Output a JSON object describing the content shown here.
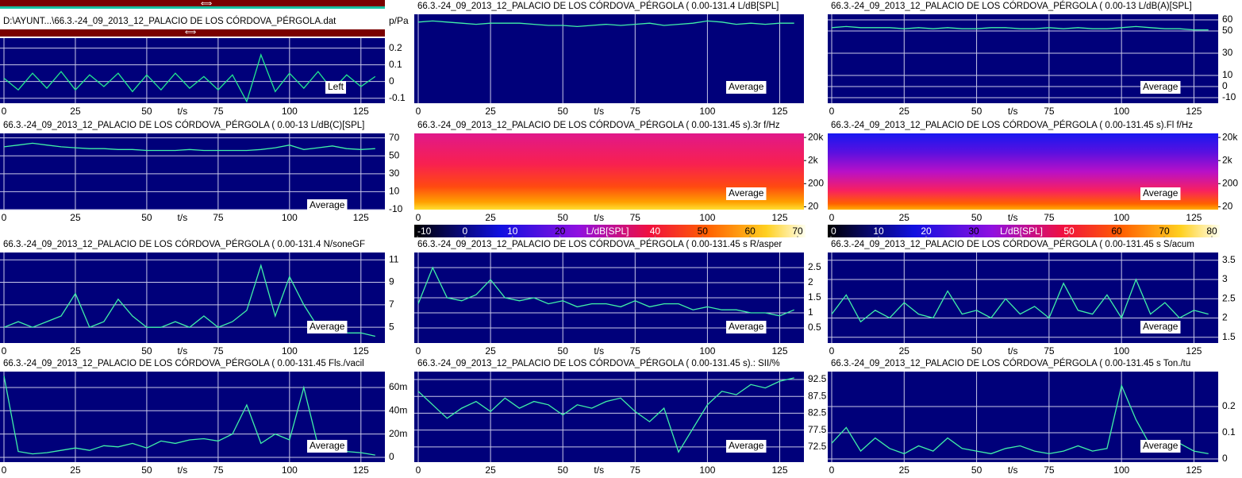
{
  "chart_data": [
    {
      "type": "line",
      "title": "D:\\AYUNT...\\66.3.-24_09_2013_12_PALACIO DE LOS CÓRDOVA_PÉRGOLA.dat",
      "ylabel": "p/Pa",
      "xlabel": "t/s",
      "annotation": "Left",
      "color": "#22e890",
      "x": [
        0,
        5,
        10,
        15,
        20,
        25,
        30,
        35,
        40,
        45,
        50,
        55,
        60,
        65,
        70,
        75,
        80,
        85,
        90,
        95,
        100,
        105,
        110,
        115,
        120,
        125,
        130
      ],
      "values": [
        0.02,
        -0.05,
        0.05,
        -0.04,
        0.06,
        -0.05,
        0.04,
        -0.03,
        0.05,
        -0.06,
        0.04,
        -0.05,
        0.05,
        -0.04,
        0.03,
        -0.05,
        0.04,
        -0.12,
        0.16,
        -0.06,
        0.05,
        -0.04,
        0.06,
        -0.05,
        0.04,
        -0.03,
        0.03
      ],
      "xlim": [
        0,
        131.45
      ],
      "xticks": [
        0,
        25,
        50,
        75,
        100,
        125
      ],
      "ylim": [
        -0.13,
        0.26
      ],
      "yticks": [
        0.2,
        0.1,
        0,
        -0.1
      ],
      "grid": true
    },
    {
      "type": "line",
      "title": "66.3.-24_09_2013_12_PALACIO DE LOS CÓRDOVA_PÉRGOLA ( 0.00-131.4 L/dB[SPL]",
      "xlabel": "t/s",
      "annotation": "Average",
      "color": "#40f0a8",
      "x": [
        0,
        5,
        10,
        15,
        20,
        25,
        30,
        35,
        40,
        45,
        50,
        55,
        60,
        65,
        70,
        75,
        80,
        85,
        90,
        95,
        100,
        105,
        110,
        115,
        120,
        125,
        130
      ],
      "values": [
        58,
        59,
        58,
        57,
        56,
        57,
        57,
        57,
        56,
        55,
        55,
        54,
        55,
        56,
        55,
        56,
        57,
        55,
        56,
        57,
        59,
        58,
        56,
        57,
        56,
        57,
        57
      ],
      "xlim": [
        0,
        131.45
      ],
      "xticks": [
        0,
        25,
        50,
        75,
        100,
        125
      ],
      "ylim": [
        -15,
        65
      ],
      "grid": true
    },
    {
      "type": "line",
      "title": "66.3.-24_09_2013_12_PALACIO DE LOS CÓRDOVA_PÉRGOLA ( 0.00-13 L/dB(A)[SPL]",
      "xlabel": "t/s",
      "annotation": "Average",
      "color": "#40f0a8",
      "x": [
        0,
        5,
        10,
        15,
        20,
        25,
        30,
        35,
        40,
        45,
        50,
        55,
        60,
        65,
        70,
        75,
        80,
        85,
        90,
        95,
        100,
        105,
        110,
        115,
        120,
        125,
        130
      ],
      "values": [
        53,
        54,
        53,
        53,
        53,
        52,
        53,
        52,
        53,
        52,
        52,
        53,
        53,
        52,
        52,
        53,
        52,
        53,
        52,
        52,
        53,
        54,
        53,
        52,
        52,
        51,
        51
      ],
      "xlim": [
        0,
        131.45
      ],
      "xticks": [
        0,
        25,
        50,
        75,
        100,
        125
      ],
      "ylim": [
        -15,
        65
      ],
      "yticks": [
        60,
        50,
        30,
        10,
        0,
        -10
      ],
      "grid": true
    },
    {
      "type": "line",
      "title": "66.3.-24_09_2013_12_PALACIO DE LOS CÓRDOVA_PÉRGOLA ( 0.00-13 L/dB(C)[SPL]",
      "xlabel": "t/s",
      "annotation": "Average",
      "color": "#40f0a8",
      "x": [
        0,
        5,
        10,
        15,
        20,
        25,
        30,
        35,
        40,
        45,
        50,
        55,
        60,
        65,
        70,
        75,
        80,
        85,
        90,
        95,
        100,
        105,
        110,
        115,
        120,
        125,
        130
      ],
      "values": [
        60,
        62,
        64,
        62,
        60,
        59,
        58,
        58,
        57,
        57,
        56,
        56,
        56,
        57,
        56,
        56,
        56,
        56,
        57,
        59,
        62,
        57,
        59,
        61,
        58,
        57,
        58
      ],
      "xlim": [
        0,
        131.45
      ],
      "xticks": [
        0,
        25,
        50,
        75,
        100,
        125
      ],
      "ylim": [
        -10,
        75
      ],
      "yticks": [
        70,
        50,
        30,
        10,
        -10
      ],
      "grid": true
    },
    {
      "type": "spectrogram",
      "title": "66.3.-24_09_2013_12_PALACIO DE LOS CÓRDOVA_PÉRGOLA ( 0.00-131.45 s).3r f/Hz",
      "xlabel": "t/s",
      "annotation": "Average",
      "xlim": [
        0,
        131.45
      ],
      "xticks": [
        0,
        25,
        50,
        75,
        100,
        125
      ],
      "log_y": true,
      "ylim": [
        15,
        30000
      ],
      "yticks": [
        {
          "value": 20000,
          "label": "20k"
        },
        {
          "value": 2000,
          "label": "2k"
        },
        200,
        20
      ],
      "clim": [
        -10,
        70
      ],
      "cticks": [
        -10,
        0,
        10,
        20,
        {
          "value": 30,
          "label": "L/dB[SPL]"
        },
        40,
        50,
        60,
        70
      ]
    },
    {
      "type": "spectrogram",
      "title": "66.3.-24_09_2013_12_PALACIO DE LOS CÓRDOVA_PÉRGOLA ( 0.00-131.45 s).Fl f/Hz",
      "xlabel": "t/s",
      "annotation": "Average",
      "xlim": [
        0,
        131.45
      ],
      "xticks": [
        0,
        25,
        50,
        75,
        100,
        125
      ],
      "log_y": true,
      "ylim": [
        15,
        30000
      ],
      "yticks": [
        {
          "value": 20000,
          "label": "20k"
        },
        {
          "value": 2000,
          "label": "2k"
        },
        200,
        20
      ],
      "clim": [
        0,
        80
      ],
      "cticks": [
        0,
        10,
        20,
        30,
        {
          "value": 40,
          "label": "L/dB[SPL]"
        },
        50,
        60,
        70,
        80
      ]
    },
    {
      "type": "line",
      "title": "66.3.-24_09_2013_12_PALACIO DE LOS CÓRDOVA_PÉRGOLA ( 0.00-131.4 N/soneGF",
      "xlabel": "t/s",
      "annotation": "Average",
      "color": "#40f0a8",
      "x": [
        0,
        5,
        10,
        15,
        20,
        25,
        30,
        35,
        40,
        45,
        50,
        55,
        60,
        65,
        70,
        75,
        80,
        85,
        90,
        95,
        100,
        105,
        110,
        115,
        120,
        125,
        130
      ],
      "values": [
        5,
        5.5,
        5,
        5.5,
        6,
        8,
        5,
        5.5,
        7.5,
        6,
        5,
        5,
        5.5,
        5,
        6,
        5,
        5.5,
        6.5,
        10.5,
        6,
        9.5,
        7,
        5,
        5,
        4.5,
        4.5,
        4.2
      ],
      "xlim": [
        0,
        131.45
      ],
      "xticks": [
        0,
        25,
        50,
        75,
        100,
        125
      ],
      "ylim": [
        3.6,
        11.65
      ],
      "yticks": [
        11,
        9,
        7,
        5
      ],
      "grid": true
    },
    {
      "type": "line",
      "title": "66.3.-24_09_2013_12_PALACIO DE LOS CÓRDOVA_PÉRGOLA ( 0.00-131.45 s R/asper",
      "xlabel": "t/s",
      "annotation": "Average",
      "color": "#40f0a8",
      "x": [
        0,
        5,
        10,
        15,
        20,
        25,
        30,
        35,
        40,
        45,
        50,
        55,
        60,
        65,
        70,
        75,
        80,
        85,
        90,
        95,
        100,
        105,
        110,
        115,
        120,
        125,
        130
      ],
      "values": [
        1.3,
        2.5,
        1.5,
        1.4,
        1.6,
        2.1,
        1.5,
        1.4,
        1.5,
        1.3,
        1.4,
        1.2,
        1.3,
        1.3,
        1.2,
        1.4,
        1.2,
        1.3,
        1.3,
        1.1,
        1.2,
        1.1,
        1.1,
        1.0,
        1.0,
        0.9,
        1.1
      ],
      "xlim": [
        0,
        131.45
      ],
      "xticks": [
        0,
        25,
        50,
        75,
        100,
        125
      ],
      "ylim": [
        0,
        3
      ],
      "yticks": [
        2.5,
        2,
        1.5,
        1,
        0.5
      ],
      "grid": true
    },
    {
      "type": "line",
      "title": "66.3.-24_09_2013_12_PALACIO DE LOS CÓRDOVA_PÉRGOLA ( 0.00-131.45 s S/acum",
      "xlabel": "t/s",
      "annotation": "Average",
      "color": "#40f0a8",
      "x": [
        0,
        5,
        10,
        15,
        20,
        25,
        30,
        35,
        40,
        45,
        50,
        55,
        60,
        65,
        70,
        75,
        80,
        85,
        90,
        95,
        100,
        105,
        110,
        115,
        120,
        125,
        130
      ],
      "values": [
        2.1,
        2.6,
        1.9,
        2.2,
        2.0,
        2.4,
        2.1,
        2.0,
        2.7,
        2.1,
        2.2,
        2.0,
        2.5,
        2.1,
        2.3,
        2.0,
        2.9,
        2.2,
        2.1,
        2.6,
        2.0,
        3.0,
        2.1,
        2.4,
        2.0,
        2.2,
        2.1
      ],
      "xlim": [
        0,
        131.45
      ],
      "xticks": [
        0,
        25,
        50,
        75,
        100,
        125
      ],
      "ylim": [
        1.35,
        3.7
      ],
      "yticks": [
        3.5,
        3,
        2.5,
        2,
        1.5
      ],
      "grid": true
    },
    {
      "type": "line",
      "title": "66.3.-24_09_2013_12_PALACIO DE LOS CÓRDOVA_PÉRGOLA ( 0.00-131.45 Fls./vacil",
      "xlabel": "t/s",
      "annotation": "Average",
      "color": "#40f0a8",
      "x": [
        0,
        5,
        10,
        15,
        20,
        25,
        30,
        35,
        40,
        45,
        50,
        55,
        60,
        65,
        70,
        75,
        80,
        85,
        90,
        95,
        100,
        105,
        110,
        115,
        120,
        125,
        130
      ],
      "values": [
        0.07,
        0.005,
        0.003,
        0.004,
        0.006,
        0.008,
        0.006,
        0.01,
        0.009,
        0.012,
        0.008,
        0.014,
        0.012,
        0.015,
        0.016,
        0.014,
        0.02,
        0.045,
        0.012,
        0.02,
        0.015,
        0.06,
        0.01,
        0.008,
        0.005,
        0.004,
        0.002
      ],
      "xlim": [
        0,
        131.45
      ],
      "xticks": [
        0,
        25,
        50,
        75,
        100,
        125
      ],
      "ylim": [
        -0.0041,
        0.0736
      ],
      "yticks": [
        {
          "value": 0.06,
          "label": "60m"
        },
        {
          "value": 0.04,
          "label": "40m"
        },
        {
          "value": 0.02,
          "label": "20m"
        },
        0
      ],
      "grid": true
    },
    {
      "type": "line",
      "title": "66.3.-24_09_2013_12_PALACIO DE LOS CÓRDOVA_PÉRGOLA ( 0.00-131.45 s).: SII/%",
      "xlabel": "t/s",
      "annotation": "Average",
      "color": "#40f0a8",
      "x": [
        0,
        5,
        10,
        15,
        20,
        25,
        30,
        35,
        40,
        45,
        50,
        55,
        60,
        65,
        70,
        75,
        80,
        85,
        90,
        95,
        100,
        105,
        110,
        115,
        120,
        125,
        130
      ],
      "values": [
        89,
        85,
        81,
        84,
        86,
        83,
        87,
        84,
        86,
        85,
        82,
        85,
        84,
        86,
        87,
        83,
        80,
        84,
        71,
        78,
        85,
        89,
        88,
        91,
        90,
        92,
        93
      ],
      "xlim": [
        0,
        131.45
      ],
      "xticks": [
        0,
        25,
        50,
        75,
        100,
        125
      ],
      "ylim": [
        68,
        94.85
      ],
      "yticks": [
        92.5,
        87.5,
        82.5,
        77.5,
        72.5
      ],
      "grid": true
    },
    {
      "type": "line",
      "title": "66.3.-24_09_2013_12_PALACIO DE LOS CÓRDOVA_PÉRGOLA ( 0.00-131.45 s Ton./tu",
      "xlabel": "t/s",
      "annotation": "Average",
      "color": "#40f0a8",
      "x": [
        0,
        5,
        10,
        15,
        20,
        25,
        30,
        35,
        40,
        45,
        50,
        55,
        60,
        65,
        70,
        75,
        80,
        85,
        90,
        95,
        100,
        105,
        110,
        115,
        120,
        125,
        130
      ],
      "values": [
        0.06,
        0.12,
        0.03,
        0.08,
        0.04,
        0.02,
        0.05,
        0.03,
        0.08,
        0.04,
        0.03,
        0.02,
        0.04,
        0.05,
        0.03,
        0.02,
        0.03,
        0.05,
        0.03,
        0.04,
        0.28,
        0.15,
        0.05,
        0.03,
        0.06,
        0.03,
        0.02
      ],
      "xlim": [
        0,
        131.45
      ],
      "xticks": [
        0,
        25,
        50,
        75,
        100,
        125
      ],
      "ylim": [
        -0.012,
        0.333
      ],
      "yticks": [
        0.2,
        0.1,
        0
      ],
      "grid": true
    }
  ]
}
